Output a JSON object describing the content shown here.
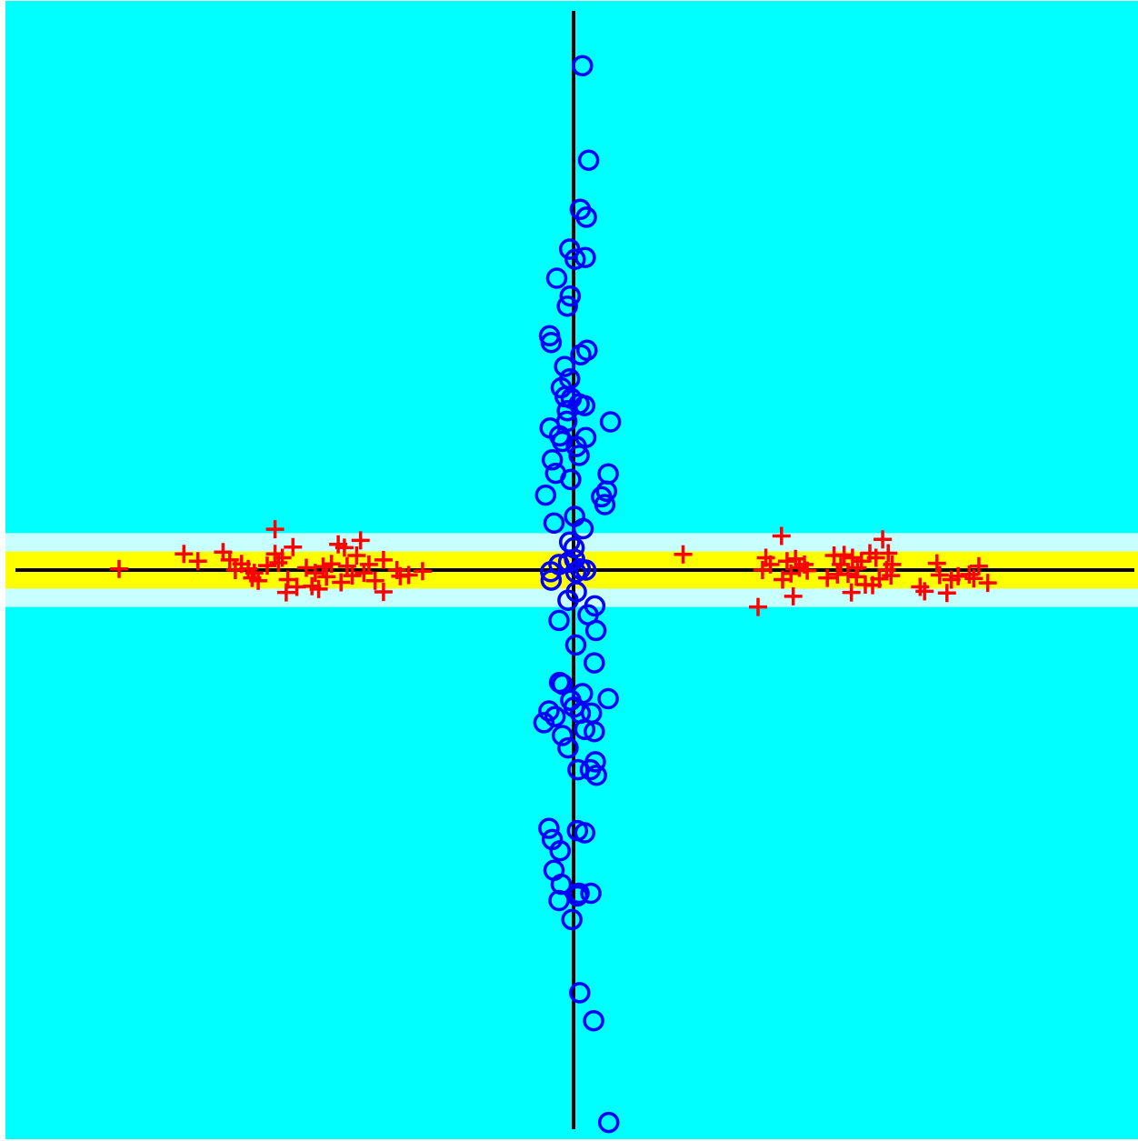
{
  "chart_data": {
    "type": "scatter",
    "title": "",
    "xlabel": "",
    "ylabel": "",
    "xlim": [
      -1.0,
      1.0
    ],
    "ylim": [
      -1.0,
      1.0
    ],
    "grid": false,
    "legend": "none",
    "axes": {
      "x_axis_line_at_y": 0,
      "y_axis_line_at_x": 0
    },
    "bands": [
      {
        "name": "outer",
        "y_from": -0.066,
        "y_to": 0.066,
        "color": "#c8ffff"
      },
      {
        "name": "inner",
        "y_from": -0.033,
        "y_to": 0.033,
        "color": "#ffff00"
      }
    ],
    "colors": {
      "background": "#00ffff",
      "axis": "#000000"
    },
    "series": [
      {
        "marker": "plus",
        "color": "#ff0000",
        "points": [
          [
            -0.813,
            0.002
          ],
          [
            -0.697,
            0.029
          ],
          [
            -0.672,
            0.016
          ],
          [
            -0.627,
            0.032
          ],
          [
            -0.615,
            0.018
          ],
          [
            -0.605,
            0.0
          ],
          [
            -0.594,
            0.011
          ],
          [
            -0.582,
            0.002
          ],
          [
            -0.575,
            -0.014
          ],
          [
            -0.571,
            -0.005
          ],
          [
            -0.564,
            -0.019
          ],
          [
            -0.548,
            0.008
          ],
          [
            -0.534,
            0.073
          ],
          [
            -0.534,
            0.029
          ],
          [
            -0.528,
            0.013
          ],
          [
            -0.521,
            0.022
          ],
          [
            -0.514,
            -0.04
          ],
          [
            -0.511,
            -0.017
          ],
          [
            -0.502,
            0.041
          ],
          [
            -0.495,
            -0.03
          ],
          [
            -0.478,
            0.004
          ],
          [
            -0.468,
            -0.029
          ],
          [
            -0.462,
            -0.005
          ],
          [
            -0.456,
            -0.034
          ],
          [
            -0.448,
            0.006
          ],
          [
            -0.442,
            -0.012
          ],
          [
            -0.433,
            0.011
          ],
          [
            -0.421,
            0.046
          ],
          [
            -0.416,
            -0.022
          ],
          [
            -0.41,
            0.04
          ],
          [
            -0.405,
            0.007
          ],
          [
            -0.396,
            -0.01
          ],
          [
            -0.388,
            0.026
          ],
          [
            -0.381,
            0.053
          ],
          [
            -0.375,
            -0.005
          ],
          [
            -0.366,
            0.01
          ],
          [
            -0.355,
            -0.019
          ],
          [
            -0.34,
            0.018
          ],
          [
            -0.34,
            -0.039
          ],
          [
            -0.316,
            0.0
          ],
          [
            -0.31,
            -0.011
          ],
          [
            -0.295,
            -0.009
          ],
          [
            -0.27,
            -0.002
          ],
          [
            0.196,
            0.028
          ],
          [
            0.33,
            -0.066
          ],
          [
            0.338,
            0.0
          ],
          [
            0.344,
            0.022
          ],
          [
            0.352,
            0.01
          ],
          [
            0.372,
            0.061
          ],
          [
            0.374,
            -0.017
          ],
          [
            0.382,
            0.016
          ],
          [
            0.389,
            -0.006
          ],
          [
            0.393,
            -0.047
          ],
          [
            0.397,
            0.02
          ],
          [
            0.404,
            0.004
          ],
          [
            0.413,
            0.01
          ],
          [
            0.418,
            -0.001
          ],
          [
            0.454,
            -0.014
          ],
          [
            0.466,
            0.026
          ],
          [
            0.472,
            -0.008
          ],
          [
            0.478,
            0.01
          ],
          [
            0.484,
            0.027
          ],
          [
            0.491,
            -0.007
          ],
          [
            0.497,
            -0.04
          ],
          [
            0.499,
            0.022
          ],
          [
            0.506,
            -0.012
          ],
          [
            0.508,
            0.004
          ],
          [
            0.515,
            0.016
          ],
          [
            0.522,
            -0.026
          ],
          [
            0.53,
            0.03
          ],
          [
            0.535,
            -0.027
          ],
          [
            0.541,
            0.022
          ],
          [
            0.547,
            -0.016
          ],
          [
            0.553,
            0.055
          ],
          [
            0.56,
            0.0
          ],
          [
            0.563,
            0.03
          ],
          [
            0.568,
            -0.01
          ],
          [
            0.57,
            0.01
          ],
          [
            0.62,
            -0.03
          ],
          [
            0.628,
            -0.038
          ],
          [
            0.65,
            0.012
          ],
          [
            0.655,
            -0.009
          ],
          [
            0.668,
            -0.041
          ],
          [
            0.676,
            -0.017
          ],
          [
            0.688,
            -0.011
          ],
          [
            0.708,
            -0.008
          ],
          [
            0.716,
            -0.015
          ],
          [
            0.725,
            0.007
          ],
          [
            0.741,
            -0.023
          ]
        ]
      },
      {
        "marker": "circle",
        "color": "#0000ff",
        "points": [
          [
            0.016,
            0.902
          ],
          [
            0.027,
            0.733
          ],
          [
            0.012,
            0.645
          ],
          [
            0.023,
            0.631
          ],
          [
            -0.007,
            0.574
          ],
          [
            0.003,
            0.556
          ],
          [
            0.021,
            0.559
          ],
          [
            -0.03,
            0.522
          ],
          [
            -0.006,
            0.49
          ],
          [
            -0.011,
            0.472
          ],
          [
            -0.043,
            0.419
          ],
          [
            -0.04,
            0.407
          ],
          [
            0.024,
            0.393
          ],
          [
            0.013,
            0.385
          ],
          [
            -0.016,
            0.364
          ],
          [
            -0.007,
            0.342
          ],
          [
            -0.022,
            0.326
          ],
          [
            -0.015,
            0.31
          ],
          [
            -0.004,
            0.307
          ],
          [
            0.01,
            0.297
          ],
          [
            0.02,
            0.294
          ],
          [
            -0.011,
            0.285
          ],
          [
            -0.012,
            0.266
          ],
          [
            0.066,
            0.265
          ],
          [
            -0.042,
            0.254
          ],
          [
            -0.025,
            0.24
          ],
          [
            0.022,
            0.237
          ],
          [
            -0.02,
            0.23
          ],
          [
            0.005,
            0.221
          ],
          [
            0.01,
            0.205
          ],
          [
            -0.038,
            0.197
          ],
          [
            -0.032,
            0.173
          ],
          [
            0.062,
            0.172
          ],
          [
            0.059,
            0.141
          ],
          [
            -0.005,
            0.162
          ],
          [
            -0.05,
            0.134
          ],
          [
            0.05,
            0.131
          ],
          [
            0.056,
            0.117
          ],
          [
            -0.035,
            0.084
          ],
          [
            0.002,
            0.096
          ],
          [
            0.017,
            0.074
          ],
          [
            -0.007,
            0.05
          ],
          [
            0.001,
            0.04
          ],
          [
            -0.026,
            0.01
          ],
          [
            -0.009,
            0.014
          ],
          [
            0.002,
            0.019
          ],
          [
            0.004,
            -0.004
          ],
          [
            0.012,
            0.002
          ],
          [
            0.022,
            0.0
          ],
          [
            -0.041,
            -0.003
          ],
          [
            -0.04,
            -0.018
          ],
          [
            0.005,
            -0.039
          ],
          [
            -0.01,
            -0.054
          ],
          [
            0.038,
            -0.064
          ],
          [
            0.026,
            -0.08
          ],
          [
            -0.026,
            -0.09
          ],
          [
            0.04,
            -0.108
          ],
          [
            0.004,
            -0.134
          ],
          [
            0.037,
            -0.166
          ],
          [
            -0.025,
            -0.201
          ],
          [
            -0.02,
            -0.204
          ],
          [
            0.016,
            -0.221
          ],
          [
            0.062,
            -0.23
          ],
          [
            -0.005,
            -0.233
          ],
          [
            0.001,
            -0.245
          ],
          [
            -0.044,
            -0.252
          ],
          [
            0.012,
            -0.256
          ],
          [
            0.032,
            -0.256
          ],
          [
            -0.033,
            -0.262
          ],
          [
            -0.053,
            -0.273
          ],
          [
            0.02,
            -0.285
          ],
          [
            0.037,
            -0.289
          ],
          [
            -0.02,
            -0.296
          ],
          [
            -0.01,
            -0.318
          ],
          [
            0.039,
            -0.343
          ],
          [
            0.03,
            -0.357
          ],
          [
            0.008,
            -0.357
          ],
          [
            0.041,
            -0.367
          ],
          [
            -0.044,
            -0.462
          ],
          [
            0.007,
            -0.466
          ],
          [
            0.02,
            -0.47
          ],
          [
            -0.038,
            -0.482
          ],
          [
            -0.024,
            -0.502
          ],
          [
            -0.035,
            -0.537
          ],
          [
            -0.022,
            -0.562
          ],
          [
            0.01,
            -0.578
          ],
          [
            0.031,
            -0.578
          ],
          [
            0.007,
            -0.583
          ],
          [
            -0.026,
            -0.591
          ],
          [
            -0.003,
            -0.625
          ],
          [
            0.011,
            -0.756
          ],
          [
            0.036,
            -0.806
          ],
          [
            0.063,
            -0.988
          ]
        ]
      }
    ]
  }
}
